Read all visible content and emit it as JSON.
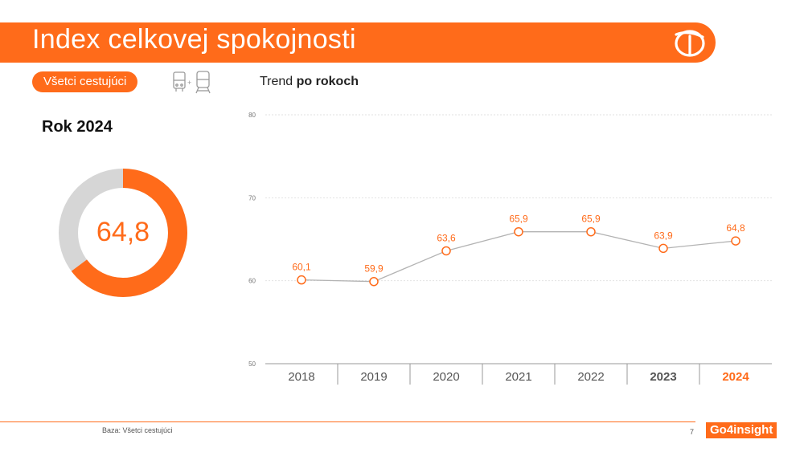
{
  "header": {
    "title": "Index celkovej spokojnosti"
  },
  "filter": {
    "segment_label": "Všetci cestujúci",
    "icons": [
      "bus-icon",
      "train-icon"
    ]
  },
  "trend": {
    "label_prefix": "Trend ",
    "label_bold": "po rokoch"
  },
  "summary": {
    "year_heading": "Rok 2024",
    "value_label": "64,8",
    "value": 64.8,
    "max": 100
  },
  "footer": {
    "base_note": "Baza: Všetci cestujúci",
    "page_number": "7",
    "brand": "Go4insight"
  },
  "colors": {
    "accent": "#ff6b1a",
    "donut_track": "#d6d6d6",
    "line": "#b3b3b3",
    "grid": "#e2e2e2"
  },
  "chart_data": {
    "type": "line",
    "title": "",
    "xlabel": "",
    "ylabel": "",
    "categories": [
      "2018",
      "2019",
      "2020",
      "2021",
      "2022",
      "2023",
      "2024"
    ],
    "series": [
      {
        "values": [
          60.1,
          59.9,
          63.6,
          65.9,
          65.9,
          63.9,
          64.8
        ],
        "labels": [
          "60,1",
          "59,9",
          "63,6",
          "65,9",
          "65,9",
          "63,9",
          "64,8"
        ]
      }
    ],
    "ylim": [
      50,
      80
    ],
    "yticks": [
      "50",
      "60",
      "70",
      "80"
    ],
    "grid": true,
    "emphasized_categories": {
      "2023": "bold",
      "2024": "accent"
    }
  }
}
